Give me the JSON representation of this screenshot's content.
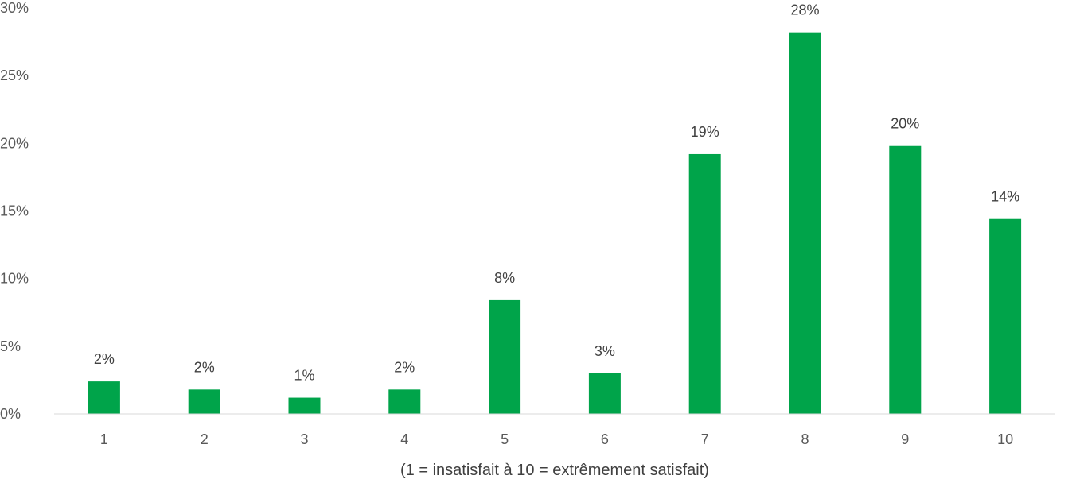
{
  "chart_data": {
    "type": "bar",
    "categories": [
      "1",
      "2",
      "3",
      "4",
      "5",
      "6",
      "7",
      "8",
      "9",
      "10"
    ],
    "values": [
      2.4,
      1.8,
      1.2,
      1.8,
      8.4,
      3.0,
      19.2,
      28.2,
      19.8,
      14.4
    ],
    "data_labels": [
      "2%",
      "2%",
      "1%",
      "2%",
      "8%",
      "3%",
      "19%",
      "28%",
      "20%",
      "14%"
    ],
    "ylim": [
      0,
      30
    ],
    "yticks": [
      0,
      5,
      10,
      15,
      20,
      25,
      30
    ],
    "ytick_labels": [
      "0%",
      "5%",
      "10%",
      "15%",
      "20%",
      "25%",
      "30%"
    ],
    "xlabel": "(1 = insatisfait à 10 = extrêmement satisfait)",
    "ylabel": "",
    "title": "",
    "grid": false,
    "legend": "none",
    "bar_color": "#00A44A",
    "axis_color": "#D9D9D9"
  }
}
